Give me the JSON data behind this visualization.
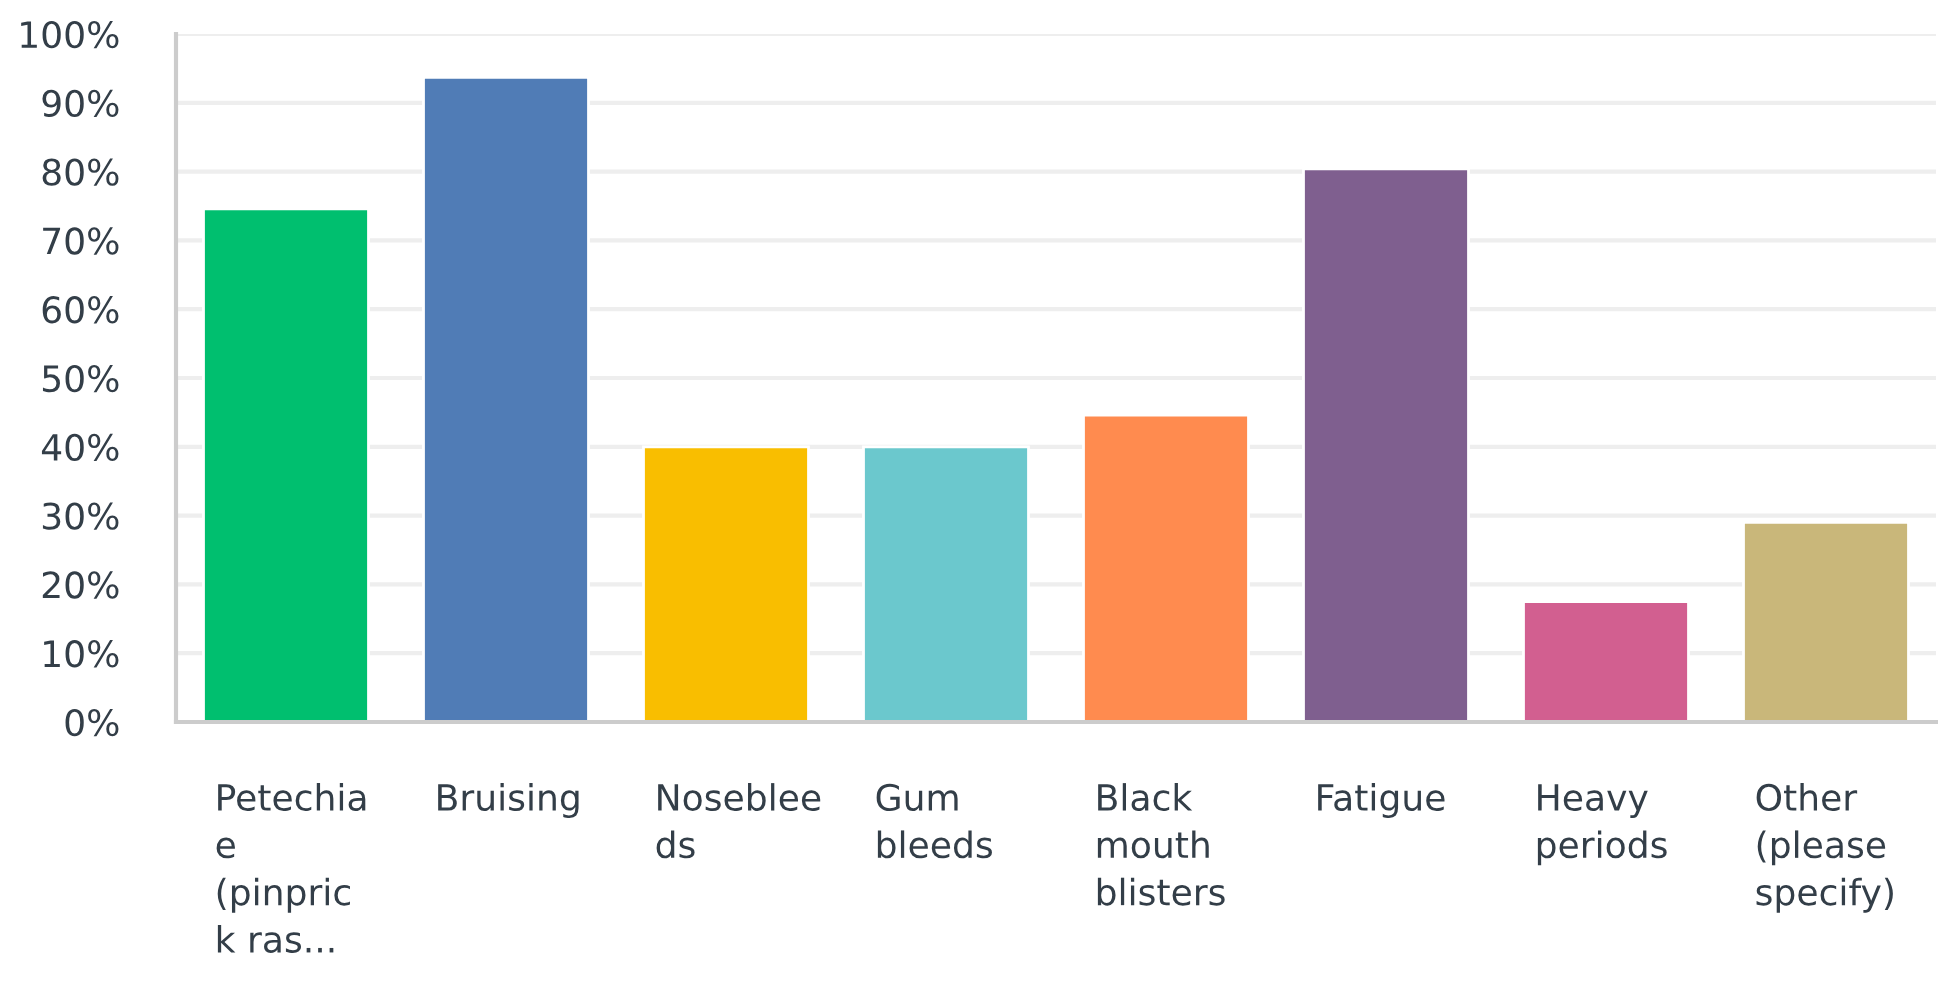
{
  "chart_data": {
    "type": "bar",
    "categories": [
      "Petechiae (pinprick ras...",
      "Bruising",
      "Nosebleeds",
      "Gum bleeds",
      "Black mouth blisters",
      "Fatigue",
      "Heavy periods",
      "Other (please specify)"
    ],
    "values": [
      74.6,
      93.7,
      40.0,
      40.0,
      44.6,
      80.4,
      17.5,
      29.0
    ],
    "colors": [
      "#00bf6f",
      "#507cb6",
      "#f9be00",
      "#6bc8cd",
      "#ff8b4f",
      "#7f5f8f",
      "#d25f90",
      "#c9b77a"
    ],
    "ylim": [
      0,
      100
    ],
    "yticks": [
      {
        "value": 0,
        "label": "0%"
      },
      {
        "value": 10,
        "label": "10%"
      },
      {
        "value": 20,
        "label": "20%"
      },
      {
        "value": 30,
        "label": "30%"
      },
      {
        "value": 40,
        "label": "40%"
      },
      {
        "value": 50,
        "label": "50%"
      },
      {
        "value": 60,
        "label": "60%"
      },
      {
        "value": 70,
        "label": "70%"
      },
      {
        "value": 80,
        "label": "80%"
      },
      {
        "value": 90,
        "label": "90%"
      },
      {
        "value": 100,
        "label": "100%"
      }
    ],
    "grid": "y"
  }
}
